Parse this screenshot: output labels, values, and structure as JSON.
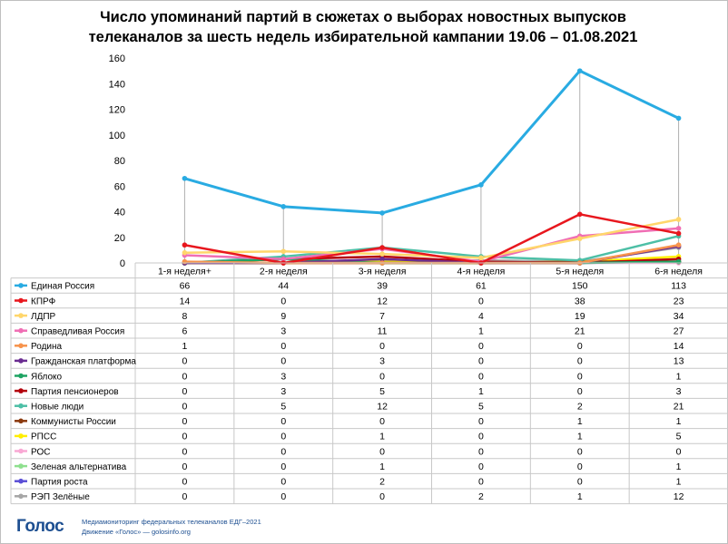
{
  "chart_data": {
    "type": "line",
    "title_line1": "Число упоминаний партий в сюжетах о выборах новостных выпусков",
    "title_line2": "телеканалов за шесть недель избирательной кампании 19.06 – 01.08.2021",
    "categories": [
      "1-я неделя+",
      "2-я неделя",
      "3-я неделя",
      "4-я неделя",
      "5-я неделя",
      "6-я неделя"
    ],
    "ylim": [
      0,
      160
    ],
    "yticks": [
      0,
      20,
      40,
      60,
      80,
      100,
      120,
      140,
      160
    ],
    "grid": false,
    "legend": "data table below plot",
    "series": [
      {
        "name": "Единая Россия",
        "color": "#29abe2",
        "values": [
          66,
          44,
          39,
          61,
          150,
          113
        ]
      },
      {
        "name": "КПРФ",
        "color": "#e8171e",
        "values": [
          14,
          0,
          12,
          0,
          38,
          23
        ]
      },
      {
        "name": "ЛДПР",
        "color": "#ffd66b",
        "values": [
          8,
          9,
          7,
          4,
          19,
          34
        ]
      },
      {
        "name": "Справедливая Россия",
        "color": "#f06eb4",
        "values": [
          6,
          3,
          11,
          1,
          21,
          27
        ]
      },
      {
        "name": "Родина",
        "color": "#f7934c",
        "values": [
          1,
          0,
          0,
          0,
          0,
          14
        ]
      },
      {
        "name": "Гражданская платформа",
        "color": "#6a2c91",
        "values": [
          0,
          0,
          3,
          0,
          0,
          13
        ]
      },
      {
        "name": "Яблоко",
        "color": "#1fa463",
        "values": [
          0,
          3,
          0,
          0,
          0,
          1
        ]
      },
      {
        "name": "Партия пенсионеров",
        "color": "#b3000c",
        "values": [
          0,
          3,
          5,
          1,
          0,
          3
        ]
      },
      {
        "name": "Новые люди",
        "color": "#4dbfa6",
        "values": [
          0,
          5,
          12,
          5,
          2,
          21
        ]
      },
      {
        "name": "Коммунисты России",
        "color": "#8b3a0f",
        "values": [
          0,
          0,
          0,
          0,
          1,
          1
        ]
      },
      {
        "name": "РПСС",
        "color": "#ffee00",
        "values": [
          0,
          0,
          1,
          0,
          1,
          5
        ]
      },
      {
        "name": "РОС",
        "color": "#f9a8d4",
        "values": [
          0,
          0,
          0,
          0,
          0,
          0
        ]
      },
      {
        "name": "Зеленая альтернатива",
        "color": "#8ee08e",
        "values": [
          0,
          0,
          1,
          0,
          0,
          1
        ]
      },
      {
        "name": "Партия роста",
        "color": "#5b4fd6",
        "values": [
          0,
          0,
          2,
          0,
          0,
          1
        ]
      },
      {
        "name": "РЭП Зелёные",
        "color": "#a6a6a6",
        "values": [
          0,
          0,
          0,
          2,
          1,
          12
        ]
      }
    ]
  },
  "footer": {
    "logo": "Голос",
    "line1": "Медиамониторинг федеральных телеканалов ЕДГ–2021",
    "line2": "Движение «Голос» — golosinfo.org"
  }
}
